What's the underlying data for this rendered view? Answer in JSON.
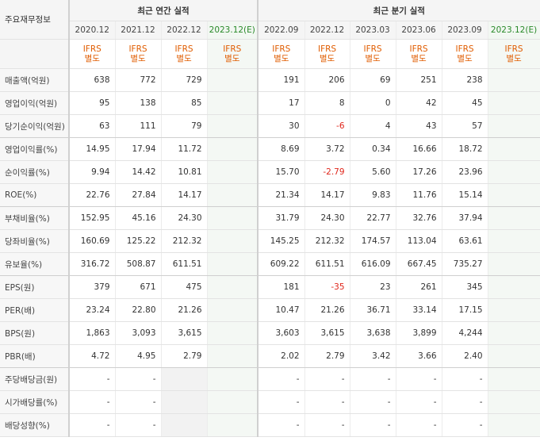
{
  "header": {
    "corner_label": "주요재무정보",
    "annual_group": "최근 연간 실적",
    "quarterly_group": "최근 분기 실적"
  },
  "annual_periods": [
    "2020.12",
    "2021.12",
    "2022.12",
    "2023.12(E)"
  ],
  "quarterly_periods": [
    "2022.09",
    "2022.12",
    "2023.03",
    "2023.06",
    "2023.09",
    "2023.12(E)"
  ],
  "basis": {
    "line1": "IFRS",
    "line2": "별도"
  },
  "rows": [
    {
      "label": "매출액(억원)",
      "annual": [
        "638",
        "772",
        "729",
        ""
      ],
      "quarterly": [
        "191",
        "206",
        "69",
        "251",
        "238",
        ""
      ]
    },
    {
      "label": "영업이익(억원)",
      "annual": [
        "95",
        "138",
        "85",
        ""
      ],
      "quarterly": [
        "17",
        "8",
        "0",
        "42",
        "45",
        ""
      ]
    },
    {
      "label": "당기순이익(억원)",
      "annual": [
        "63",
        "111",
        "79",
        ""
      ],
      "quarterly": [
        "30",
        "-6",
        "4",
        "43",
        "57",
        ""
      ]
    },
    {
      "label": "영업이익률(%)",
      "annual": [
        "14.95",
        "17.94",
        "11.72",
        ""
      ],
      "quarterly": [
        "8.69",
        "3.72",
        "0.34",
        "16.66",
        "18.72",
        ""
      ]
    },
    {
      "label": "순이익률(%)",
      "annual": [
        "9.94",
        "14.42",
        "10.81",
        ""
      ],
      "quarterly": [
        "15.70",
        "-2.79",
        "5.60",
        "17.26",
        "23.96",
        ""
      ]
    },
    {
      "label": "ROE(%)",
      "annual": [
        "22.76",
        "27.84",
        "14.17",
        ""
      ],
      "quarterly": [
        "21.34",
        "14.17",
        "9.83",
        "11.76",
        "15.14",
        ""
      ]
    },
    {
      "label": "부채비율(%)",
      "annual": [
        "152.95",
        "45.16",
        "24.30",
        ""
      ],
      "quarterly": [
        "31.79",
        "24.30",
        "22.77",
        "32.76",
        "37.94",
        ""
      ]
    },
    {
      "label": "당좌비율(%)",
      "annual": [
        "160.69",
        "125.22",
        "212.32",
        ""
      ],
      "quarterly": [
        "145.25",
        "212.32",
        "174.57",
        "113.04",
        "63.61",
        ""
      ]
    },
    {
      "label": "유보율(%)",
      "annual": [
        "316.72",
        "508.87",
        "611.51",
        ""
      ],
      "quarterly": [
        "609.22",
        "611.51",
        "616.09",
        "667.45",
        "735.27",
        ""
      ]
    },
    {
      "label": "EPS(원)",
      "annual": [
        "379",
        "671",
        "475",
        ""
      ],
      "quarterly": [
        "181",
        "-35",
        "23",
        "261",
        "345",
        ""
      ]
    },
    {
      "label": "PER(배)",
      "annual": [
        "23.24",
        "22.80",
        "21.26",
        ""
      ],
      "quarterly": [
        "10.47",
        "21.26",
        "36.71",
        "33.14",
        "17.15",
        ""
      ]
    },
    {
      "label": "BPS(원)",
      "annual": [
        "1,863",
        "3,093",
        "3,615",
        ""
      ],
      "quarterly": [
        "3,603",
        "3,615",
        "3,638",
        "3,899",
        "4,244",
        ""
      ]
    },
    {
      "label": "PBR(배)",
      "annual": [
        "4.72",
        "4.95",
        "2.79",
        ""
      ],
      "quarterly": [
        "2.02",
        "2.79",
        "3.42",
        "3.66",
        "2.40",
        ""
      ]
    },
    {
      "label": "주당배당금(원)",
      "annual": [
        "-",
        "-",
        "",
        ""
      ],
      "quarterly": [
        "-",
        "-",
        "-",
        "-",
        "-",
        ""
      ]
    },
    {
      "label": "시가배당률(%)",
      "annual": [
        "-",
        "-",
        "",
        ""
      ],
      "quarterly": [
        "-",
        "-",
        "-",
        "-",
        "-",
        ""
      ]
    },
    {
      "label": "배당성향(%)",
      "annual": [
        "-",
        "-",
        "",
        ""
      ],
      "quarterly": [
        "-",
        "-",
        "-",
        "-",
        "-",
        ""
      ]
    }
  ]
}
